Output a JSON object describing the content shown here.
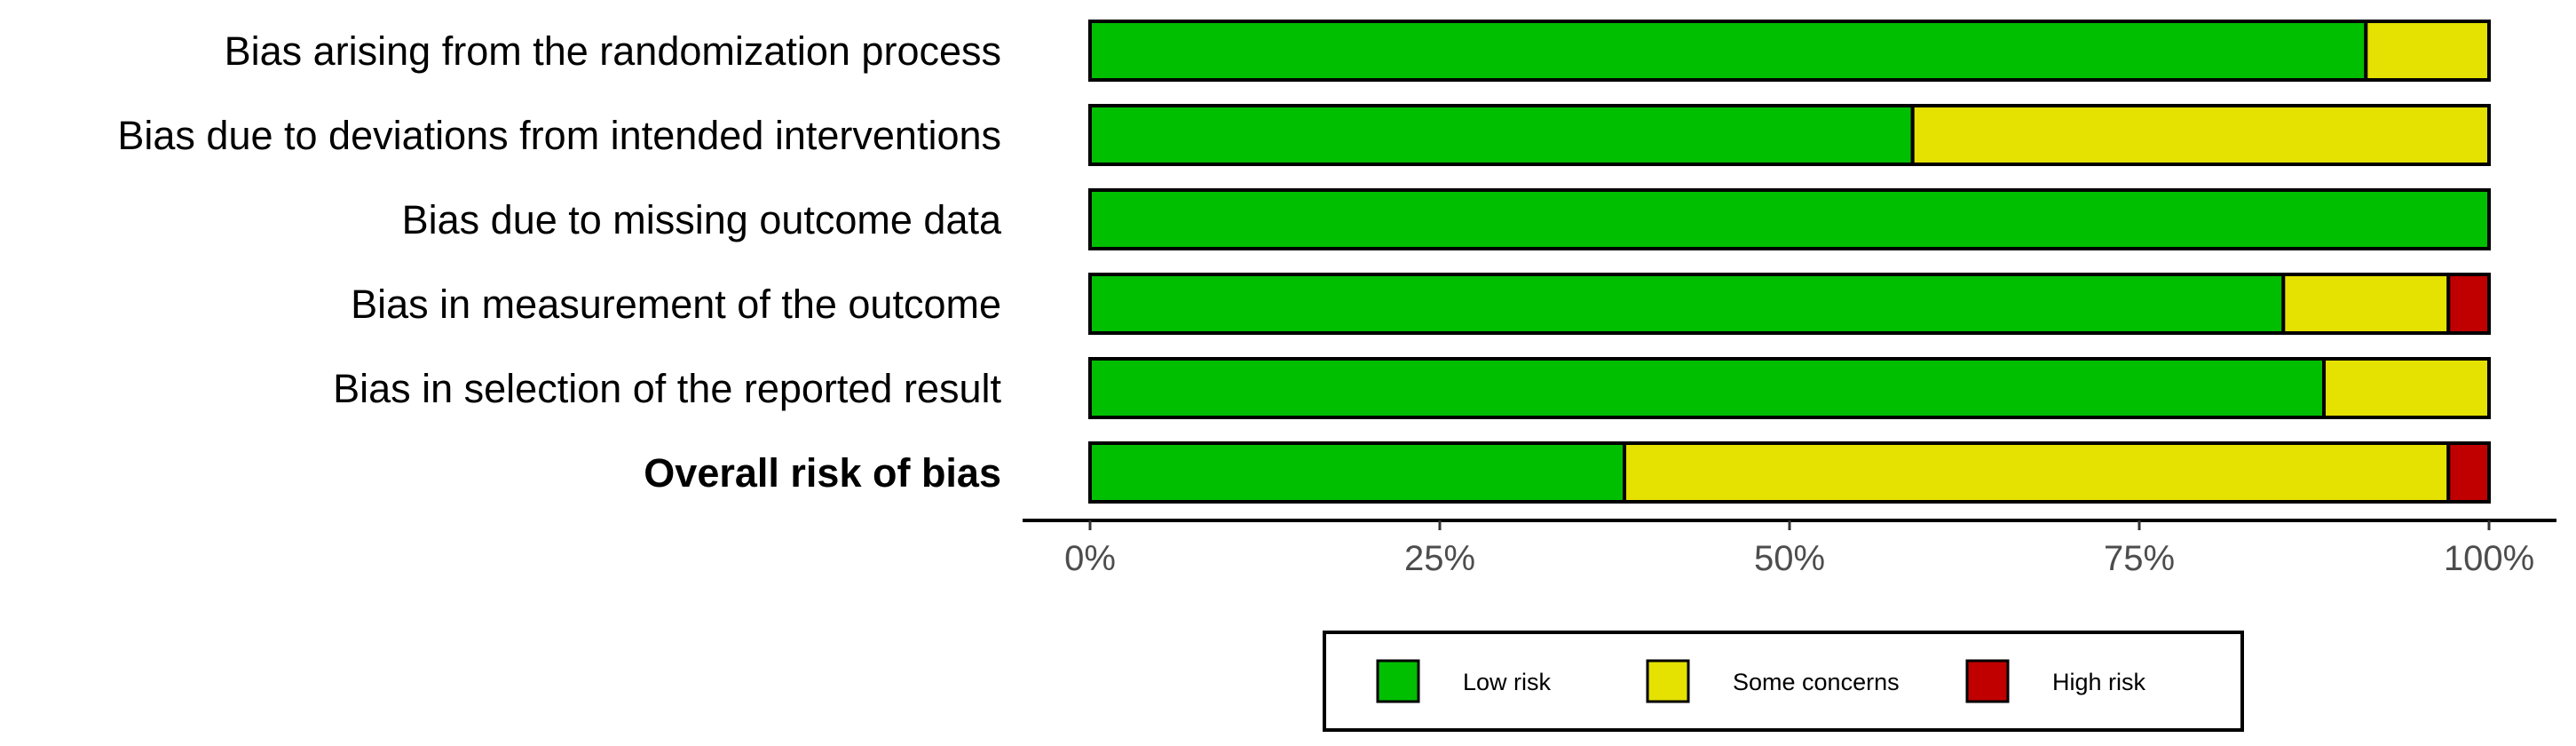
{
  "chart_data": {
    "type": "bar",
    "stacked": true,
    "orientation": "horizontal",
    "categories": [
      "Bias arising from the randomization process",
      "Bias due to deviations from intended interventions",
      "Bias due to missing outcome data",
      "Bias in measurement of the outcome",
      "Bias in selection of the reported result",
      "Overall risk of bias"
    ],
    "emphasized_category": "Overall risk of bias",
    "series": [
      {
        "name": "Low risk",
        "color": "#00bf00",
        "values": [
          91.2,
          58.8,
          100,
          85.3,
          88.2,
          38.2
        ]
      },
      {
        "name": "Some concerns",
        "color": "#e5e100",
        "values": [
          8.8,
          41.2,
          0,
          11.8,
          11.8,
          58.9
        ]
      },
      {
        "name": "High risk",
        "color": "#c00000",
        "values": [
          0,
          0,
          0,
          2.9,
          0,
          2.9
        ]
      }
    ],
    "xticks": [
      "0%",
      "25%",
      "50%",
      "75%",
      "100%"
    ],
    "xlim": [
      0,
      100
    ],
    "units": "%",
    "title": "",
    "xlabel": "",
    "ylabel": "",
    "grid": false,
    "legend_position": "bottom"
  }
}
